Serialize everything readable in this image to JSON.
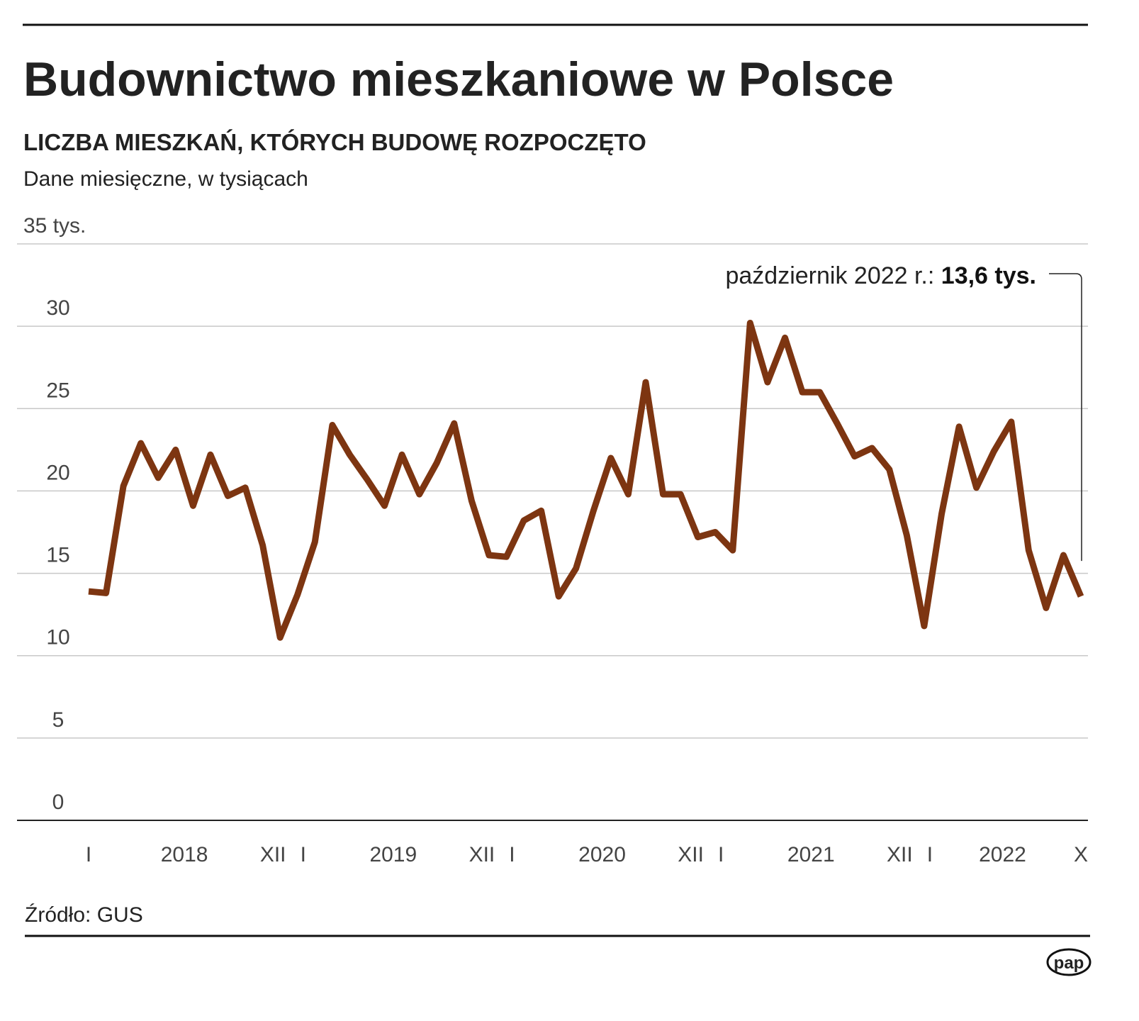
{
  "chart_data": {
    "type": "line",
    "title": "Budownictwo mieszkaniowe w Polsce",
    "subtitle": "LICZBA MIESZKAŃ, KTÓRYCH BUDOWĘ ROZPOCZĘTO",
    "note": "Dane miesięczne, w tysiącach",
    "categories": [
      "I",
      null,
      null,
      null,
      null,
      null,
      null,
      null,
      null,
      null,
      null,
      "XII",
      "I",
      null,
      null,
      null,
      null,
      null,
      null,
      null,
      null,
      null,
      null,
      "XII",
      "I",
      null,
      null,
      null,
      null,
      null,
      null,
      null,
      null,
      null,
      null,
      "XII",
      "I",
      null,
      null,
      null,
      null,
      null,
      null,
      null,
      null,
      null,
      null,
      "XII",
      "I",
      null,
      null,
      null,
      null,
      null,
      null,
      null,
      null,
      "X"
    ],
    "years": [
      "2018",
      "2019",
      "2020",
      "2021",
      "2022"
    ],
    "series": [
      {
        "name": null,
        "color": "#7d3511",
        "values": [
          13.9,
          13.8,
          20.3,
          22.9,
          20.8,
          22.5,
          19.1,
          22.2,
          19.7,
          20.2,
          16.7,
          11.1,
          13.7,
          16.9,
          24.0,
          22.2,
          20.7,
          19.1,
          22.2,
          19.8,
          21.7,
          24.1,
          19.4,
          16.1,
          16.0,
          18.2,
          18.8,
          13.6,
          15.3,
          18.8,
          22.0,
          19.8,
          26.6,
          19.8,
          19.8,
          17.2,
          17.5,
          16.4,
          30.2,
          26.6,
          29.3,
          26.0,
          26.0,
          24.1,
          22.1,
          22.6,
          21.3,
          17.3,
          11.8,
          18.6,
          23.9,
          20.2,
          22.4,
          24.2,
          16.4,
          12.9,
          16.1,
          13.6
        ]
      }
    ],
    "ylim": [
      0,
      35
    ],
    "yticks": [
      0,
      5,
      10,
      15,
      20,
      25,
      30,
      {
        "value": 35,
        "label": "35 tys."
      }
    ],
    "grid": true,
    "annotation": {
      "label": "październik 2022 r.:",
      "value_label": "13,6 tys."
    },
    "source": "Źródło: GUS",
    "logo": "pap"
  }
}
